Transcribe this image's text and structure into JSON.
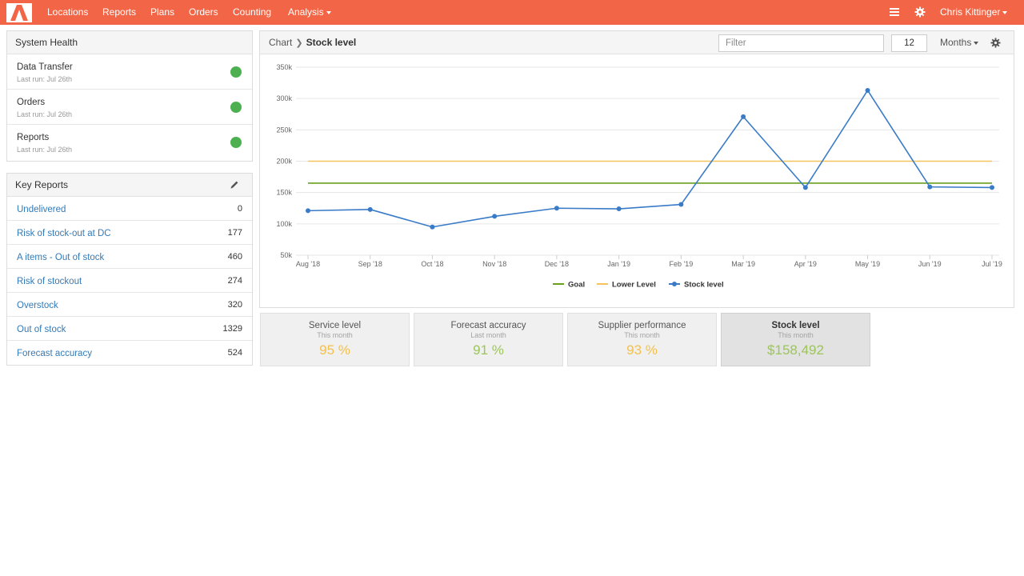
{
  "colors": {
    "brand": "#f26546",
    "link": "#337ab7",
    "status_ok": "#4caf50",
    "goal": "#6a9f1e",
    "lower_level": "#f5c35c",
    "stock_level": "#3a7bc8",
    "kpi_yellow": "#f3c04f",
    "kpi_green": "#9cc55a"
  },
  "nav": {
    "logo_icon": "brand-logo",
    "items": [
      "Locations",
      "Reports",
      "Plans",
      "Orders",
      "Counting"
    ],
    "analysis_label": "Analysis",
    "user_name": "Chris Kittinger",
    "list_icon": "list-icon",
    "settings_icon": "gear-icon"
  },
  "system_health": {
    "title": "System Health",
    "items": [
      {
        "title": "Data Transfer",
        "last_run": "Last run: Jul 26th",
        "status": "ok"
      },
      {
        "title": "Orders",
        "last_run": "Last run: Jul 26th",
        "status": "ok"
      },
      {
        "title": "Reports",
        "last_run": "Last run: Jul 26th",
        "status": "ok"
      }
    ]
  },
  "key_reports": {
    "title": "Key Reports",
    "edit_icon": "pencil-icon",
    "items": [
      {
        "label": "Undelivered",
        "count": "0"
      },
      {
        "label": "Risk of stock-out at DC",
        "count": "177"
      },
      {
        "label": "A items - Out of stock",
        "count": "460"
      },
      {
        "label": "Risk of stockout",
        "count": "274"
      },
      {
        "label": "Overstock",
        "count": "320"
      },
      {
        "label": "Out of stock",
        "count": "1329"
      },
      {
        "label": "Forecast accuracy",
        "count": "524"
      }
    ]
  },
  "chart_panel": {
    "breadcrumb_root": "Chart",
    "breadcrumb_current": "Stock level",
    "filter_placeholder": "Filter",
    "period_value": "12",
    "period_unit": "Months"
  },
  "chart_data": {
    "type": "line",
    "title": "Stock level",
    "categories": [
      "Aug '18",
      "Sep '18",
      "Oct '18",
      "Nov '18",
      "Dec '18",
      "Jan '19",
      "Feb '19",
      "Mar '19",
      "Apr '19",
      "May '19",
      "Jun '19",
      "Jul '19"
    ],
    "y_ticks": [
      "50k",
      "100k",
      "150k",
      "200k",
      "250k",
      "300k",
      "350k"
    ],
    "ylim": [
      50000,
      350000
    ],
    "grid": true,
    "legend_position": "bottom-center",
    "series": [
      {
        "name": "Goal",
        "color": "#6a9f1e",
        "markers": false,
        "values": [
          165000,
          165000,
          165000,
          165000,
          165000,
          165000,
          165000,
          165000,
          165000,
          165000,
          165000,
          165000
        ]
      },
      {
        "name": "Lower Level",
        "color": "#f5c35c",
        "markers": false,
        "values": [
          200000,
          200000,
          200000,
          200000,
          200000,
          200000,
          200000,
          200000,
          200000,
          200000,
          200000,
          200000
        ]
      },
      {
        "name": "Stock level",
        "color": "#3a7bc8",
        "markers": true,
        "values": [
          121000,
          123000,
          95000,
          112000,
          125000,
          124000,
          131000,
          271000,
          158000,
          313000,
          159000,
          158000
        ]
      }
    ]
  },
  "kpis": [
    {
      "title": "Service level",
      "period": "This month",
      "value": "95 %",
      "color": "#f3c04f",
      "active": false
    },
    {
      "title": "Forecast accuracy",
      "period": "Last month",
      "value": "91 %",
      "color": "#9cc55a",
      "active": false
    },
    {
      "title": "Supplier performance",
      "period": "This month",
      "value": "93 %",
      "color": "#f3c04f",
      "active": false
    },
    {
      "title": "Stock level",
      "period": "This month",
      "value": "$158,492",
      "color": "#9cc55a",
      "active": true
    }
  ]
}
